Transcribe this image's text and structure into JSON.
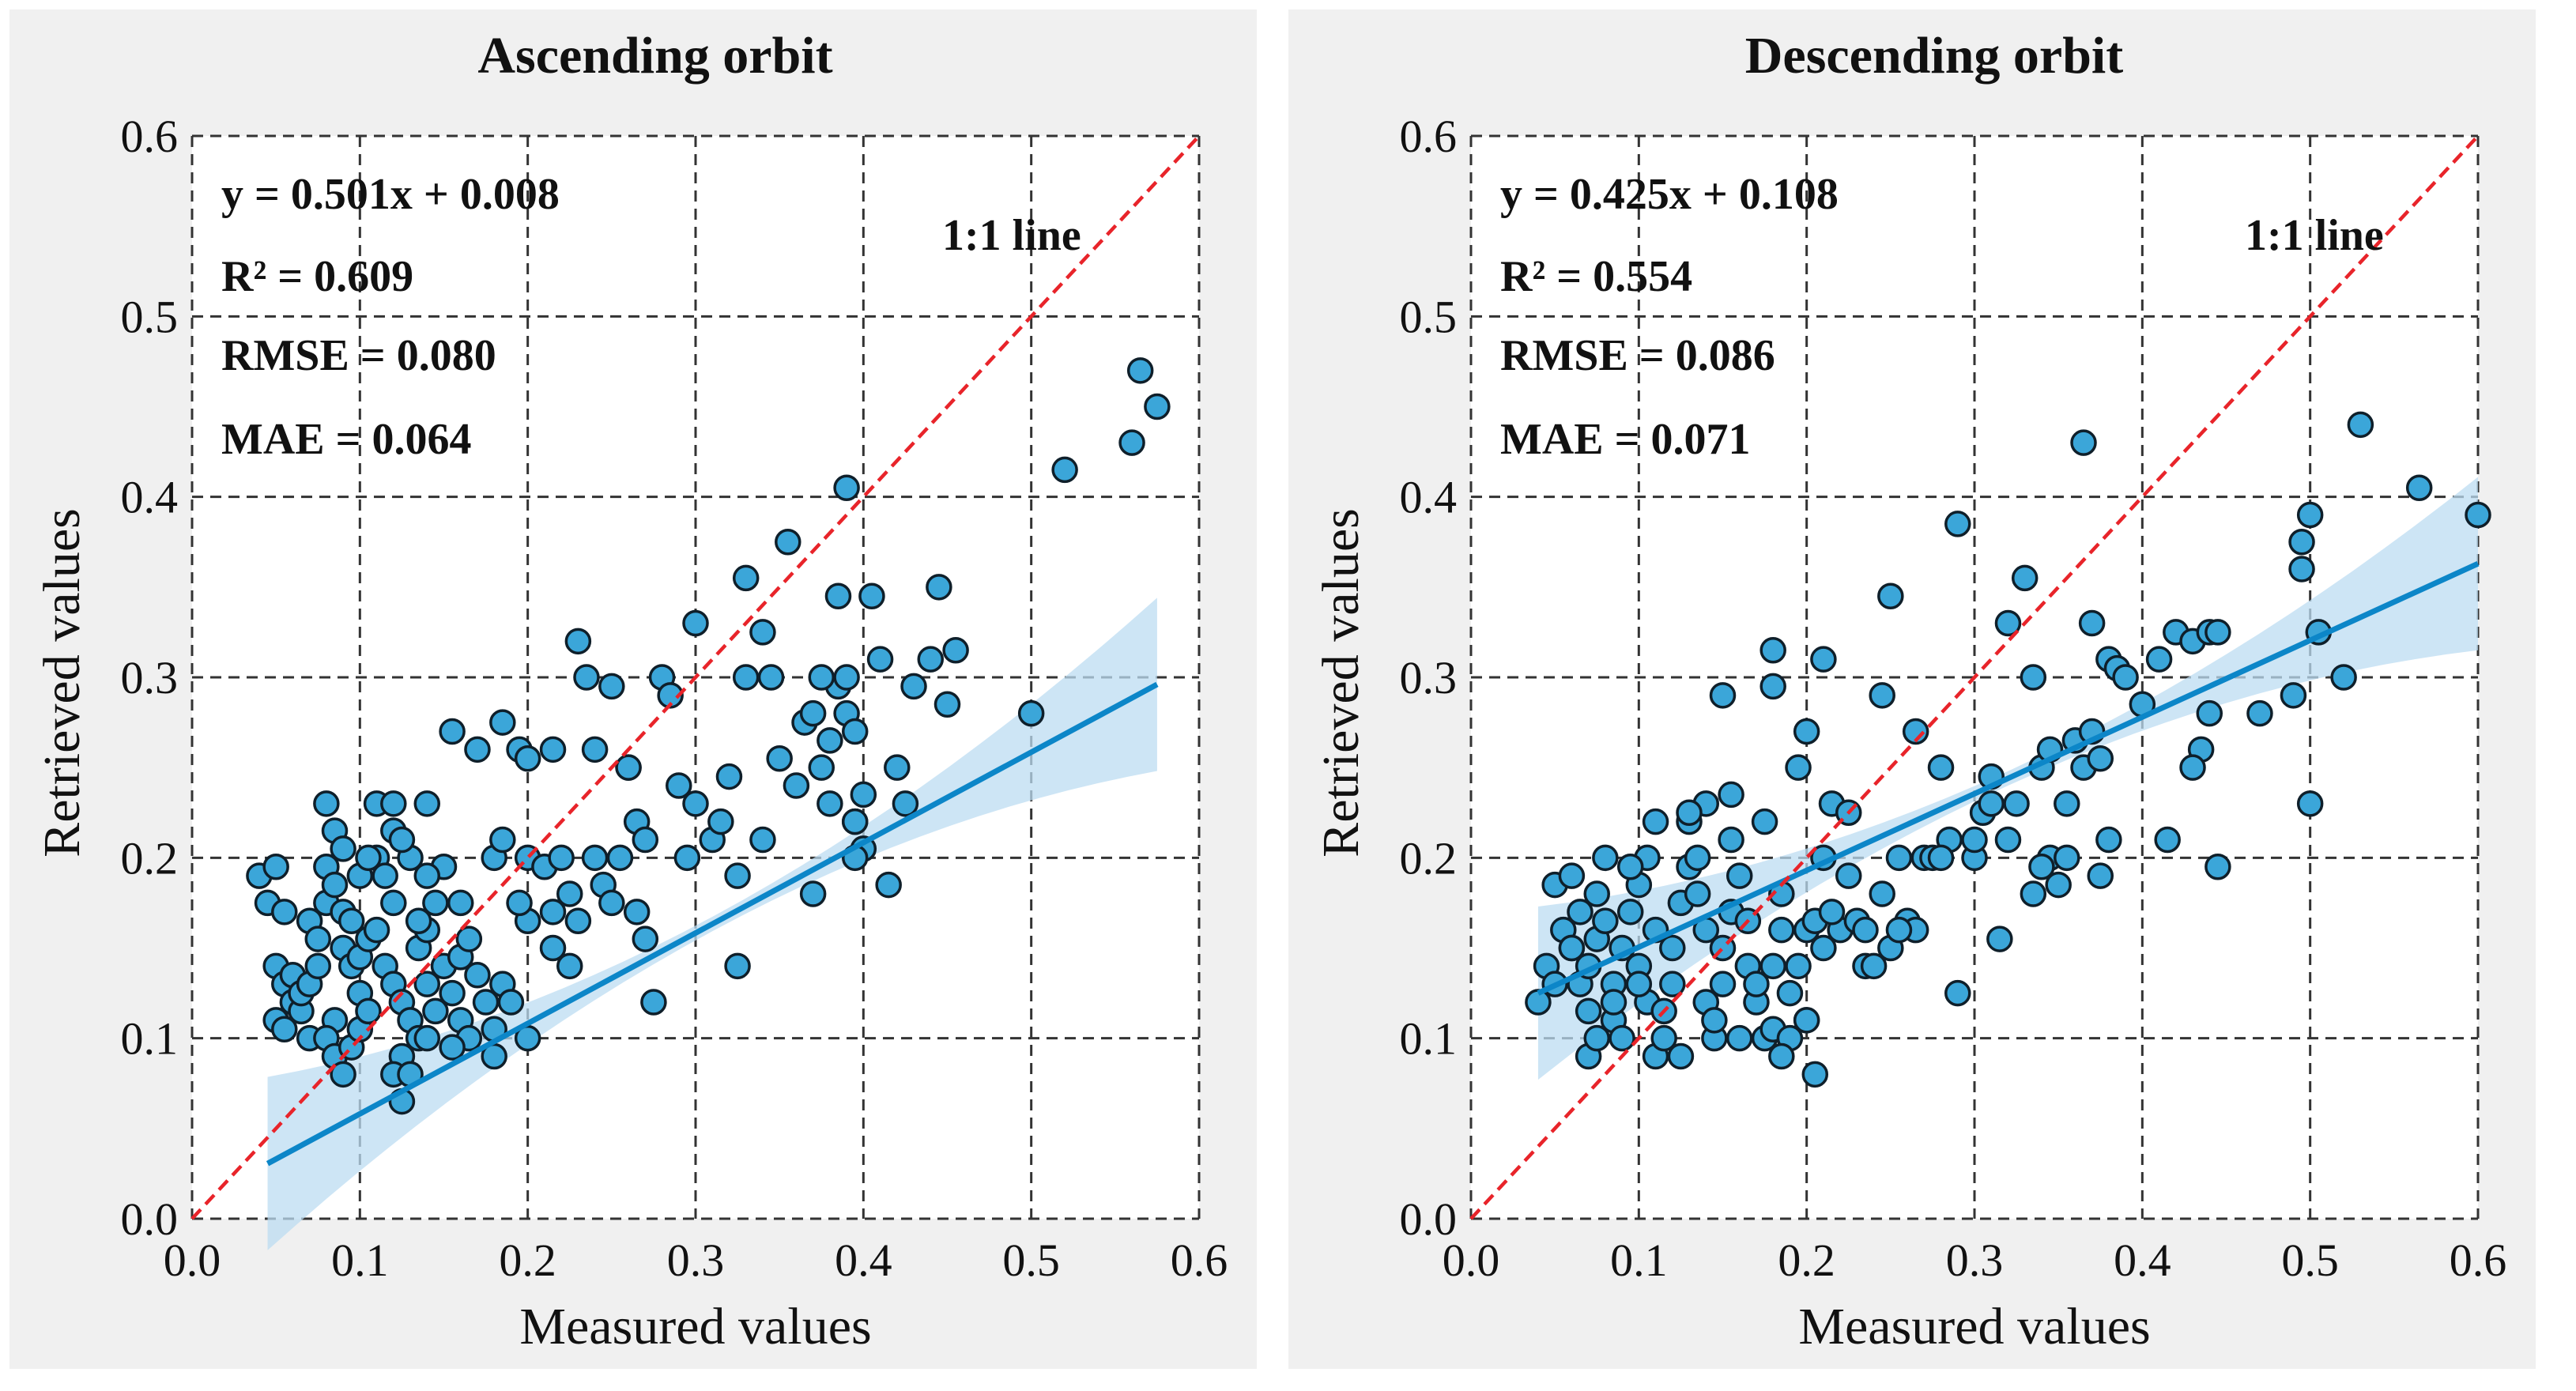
{
  "colors": {
    "background": "#f0f0f0",
    "plot_background": "#ffffff",
    "point_fill": "#3ba6d9",
    "point_edge": "#0f1f2a",
    "fit_line": "#0c86c8",
    "confidence_band": "#bcdcf2",
    "one_to_one_line": "#e8242a",
    "grid": "#333333"
  },
  "chart_data": [
    {
      "type": "scatter",
      "title": "Ascending orbit",
      "xlabel": "Measured values",
      "ylabel": "Retrieved values",
      "xlim": [
        0.0,
        0.6
      ],
      "ylim": [
        0.0,
        0.6
      ],
      "xticks": [
        "0.0",
        "0.1",
        "0.2",
        "0.3",
        "0.4",
        "0.5",
        "0.6"
      ],
      "yticks": [
        "0.0",
        "0.1",
        "0.2",
        "0.3",
        "0.4",
        "0.5",
        "0.6"
      ],
      "grid": true,
      "stats": {
        "equation": "y = 0.501x + 0.008",
        "r2": "R² = 0.609",
        "rmse": "RMSE = 0.080",
        "mae": "MAE = 0.064"
      },
      "one_to_one_label": "1:1 line",
      "fit": {
        "slope": 0.501,
        "intercept": 0.008,
        "x_range": [
          0.045,
          0.575
        ]
      },
      "points": [
        [
          0.04,
          0.19
        ],
        [
          0.045,
          0.175
        ],
        [
          0.05,
          0.195
        ],
        [
          0.055,
          0.17
        ],
        [
          0.05,
          0.14
        ],
        [
          0.055,
          0.13
        ],
        [
          0.06,
          0.12
        ],
        [
          0.065,
          0.115
        ],
        [
          0.07,
          0.1
        ],
        [
          0.05,
          0.11
        ],
        [
          0.055,
          0.105
        ],
        [
          0.06,
          0.135
        ],
        [
          0.065,
          0.125
        ],
        [
          0.07,
          0.13
        ],
        [
          0.075,
          0.14
        ],
        [
          0.07,
          0.165
        ],
        [
          0.075,
          0.155
        ],
        [
          0.08,
          0.175
        ],
        [
          0.08,
          0.195
        ],
        [
          0.08,
          0.23
        ],
        [
          0.085,
          0.215
        ],
        [
          0.09,
          0.205
        ],
        [
          0.085,
          0.185
        ],
        [
          0.09,
          0.17
        ],
        [
          0.095,
          0.165
        ],
        [
          0.09,
          0.15
        ],
        [
          0.095,
          0.14
        ],
        [
          0.1,
          0.125
        ],
        [
          0.085,
          0.11
        ],
        [
          0.08,
          0.1
        ],
        [
          0.085,
          0.09
        ],
        [
          0.09,
          0.08
        ],
        [
          0.095,
          0.095
        ],
        [
          0.1,
          0.105
        ],
        [
          0.105,
          0.115
        ],
        [
          0.1,
          0.145
        ],
        [
          0.105,
          0.155
        ],
        [
          0.11,
          0.16
        ],
        [
          0.11,
          0.2
        ],
        [
          0.115,
          0.19
        ],
        [
          0.12,
          0.175
        ],
        [
          0.1,
          0.19
        ],
        [
          0.105,
          0.2
        ],
        [
          0.11,
          0.23
        ],
        [
          0.12,
          0.23
        ],
        [
          0.13,
          0.2
        ],
        [
          0.14,
          0.23
        ],
        [
          0.12,
          0.215
        ],
        [
          0.125,
          0.21
        ],
        [
          0.115,
          0.14
        ],
        [
          0.12,
          0.13
        ],
        [
          0.125,
          0.12
        ],
        [
          0.13,
          0.11
        ],
        [
          0.135,
          0.1
        ],
        [
          0.125,
          0.09
        ],
        [
          0.12,
          0.08
        ],
        [
          0.125,
          0.065
        ],
        [
          0.13,
          0.08
        ],
        [
          0.14,
          0.1
        ],
        [
          0.145,
          0.115
        ],
        [
          0.14,
          0.13
        ],
        [
          0.135,
          0.15
        ],
        [
          0.14,
          0.16
        ],
        [
          0.135,
          0.165
        ],
        [
          0.145,
          0.175
        ],
        [
          0.15,
          0.195
        ],
        [
          0.14,
          0.19
        ],
        [
          0.15,
          0.14
        ],
        [
          0.155,
          0.125
        ],
        [
          0.16,
          0.11
        ],
        [
          0.165,
          0.1
        ],
        [
          0.155,
          0.095
        ],
        [
          0.16,
          0.145
        ],
        [
          0.165,
          0.155
        ],
        [
          0.17,
          0.135
        ],
        [
          0.175,
          0.12
        ],
        [
          0.18,
          0.105
        ],
        [
          0.18,
          0.09
        ],
        [
          0.185,
          0.13
        ],
        [
          0.19,
          0.12
        ],
        [
          0.2,
          0.1
        ],
        [
          0.2,
          0.165
        ],
        [
          0.195,
          0.175
        ],
        [
          0.18,
          0.2
        ],
        [
          0.185,
          0.21
        ],
        [
          0.2,
          0.2
        ],
        [
          0.21,
          0.195
        ],
        [
          0.215,
          0.17
        ],
        [
          0.22,
          0.2
        ],
        [
          0.225,
          0.18
        ],
        [
          0.23,
          0.165
        ],
        [
          0.225,
          0.14
        ],
        [
          0.24,
          0.2
        ],
        [
          0.245,
          0.185
        ],
        [
          0.25,
          0.175
        ],
        [
          0.255,
          0.2
        ],
        [
          0.24,
          0.26
        ],
        [
          0.235,
          0.3
        ],
        [
          0.23,
          0.32
        ],
        [
          0.25,
          0.295
        ],
        [
          0.26,
          0.25
        ],
        [
          0.265,
          0.22
        ],
        [
          0.27,
          0.21
        ],
        [
          0.265,
          0.17
        ],
        [
          0.27,
          0.155
        ],
        [
          0.275,
          0.12
        ],
        [
          0.28,
          0.3
        ],
        [
          0.285,
          0.29
        ],
        [
          0.29,
          0.24
        ],
        [
          0.295,
          0.2
        ],
        [
          0.3,
          0.23
        ],
        [
          0.3,
          0.33
        ],
        [
          0.31,
          0.21
        ],
        [
          0.315,
          0.22
        ],
        [
          0.32,
          0.245
        ],
        [
          0.325,
          0.19
        ],
        [
          0.325,
          0.14
        ],
        [
          0.33,
          0.3
        ],
        [
          0.33,
          0.355
        ],
        [
          0.34,
          0.325
        ],
        [
          0.34,
          0.21
        ],
        [
          0.35,
          0.255
        ],
        [
          0.355,
          0.375
        ],
        [
          0.36,
          0.24
        ],
        [
          0.365,
          0.275
        ],
        [
          0.37,
          0.28
        ],
        [
          0.37,
          0.18
        ],
        [
          0.375,
          0.25
        ],
        [
          0.38,
          0.23
        ],
        [
          0.38,
          0.265
        ],
        [
          0.385,
          0.345
        ],
        [
          0.385,
          0.295
        ],
        [
          0.39,
          0.3
        ],
        [
          0.39,
          0.405
        ],
        [
          0.39,
          0.28
        ],
        [
          0.395,
          0.27
        ],
        [
          0.395,
          0.22
        ],
        [
          0.4,
          0.205
        ],
        [
          0.4,
          0.235
        ],
        [
          0.405,
          0.345
        ],
        [
          0.41,
          0.31
        ],
        [
          0.415,
          0.185
        ],
        [
          0.42,
          0.25
        ],
        [
          0.425,
          0.23
        ],
        [
          0.43,
          0.295
        ],
        [
          0.44,
          0.31
        ],
        [
          0.445,
          0.35
        ],
        [
          0.45,
          0.285
        ],
        [
          0.455,
          0.315
        ],
        [
          0.5,
          0.28
        ],
        [
          0.52,
          0.415
        ],
        [
          0.56,
          0.43
        ],
        [
          0.565,
          0.47
        ],
        [
          0.575,
          0.45
        ],
        [
          0.155,
          0.27
        ],
        [
          0.17,
          0.26
        ],
        [
          0.185,
          0.275
        ],
        [
          0.195,
          0.26
        ],
        [
          0.2,
          0.255
        ],
        [
          0.26,
          0.25
        ],
        [
          0.215,
          0.26
        ],
        [
          0.395,
          0.22
        ],
        [
          0.375,
          0.3
        ],
        [
          0.345,
          0.3
        ],
        [
          0.395,
          0.2
        ],
        [
          0.215,
          0.15
        ],
        [
          0.16,
          0.175
        ]
      ]
    },
    {
      "type": "scatter",
      "title": "Descending orbit",
      "xlabel": "Measured values",
      "ylabel": "Retrieved values",
      "xlim": [
        0.0,
        0.6
      ],
      "ylim": [
        0.0,
        0.6
      ],
      "xticks": [
        "0.0",
        "0.1",
        "0.2",
        "0.3",
        "0.4",
        "0.5",
        "0.6"
      ],
      "yticks": [
        "0.0",
        "0.1",
        "0.2",
        "0.3",
        "0.4",
        "0.5",
        "0.6"
      ],
      "grid": true,
      "stats": {
        "equation": "y = 0.425x + 0.108",
        "r2": "R² = 0.554",
        "rmse": "RMSE = 0.086",
        "mae": "MAE = 0.071"
      },
      "one_to_one_label": "1:1 line",
      "fit": {
        "slope": 0.425,
        "intercept": 0.108,
        "x_range": [
          0.04,
          0.6
        ]
      },
      "points": [
        [
          0.04,
          0.12
        ],
        [
          0.045,
          0.14
        ],
        [
          0.05,
          0.13
        ],
        [
          0.05,
          0.185
        ],
        [
          0.055,
          0.16
        ],
        [
          0.06,
          0.15
        ],
        [
          0.06,
          0.19
        ],
        [
          0.065,
          0.17
        ],
        [
          0.065,
          0.13
        ],
        [
          0.07,
          0.115
        ],
        [
          0.07,
          0.14
        ],
        [
          0.075,
          0.155
        ],
        [
          0.075,
          0.18
        ],
        [
          0.08,
          0.2
        ],
        [
          0.08,
          0.165
        ],
        [
          0.085,
          0.13
        ],
        [
          0.085,
          0.11
        ],
        [
          0.09,
          0.1
        ],
        [
          0.09,
          0.15
        ],
        [
          0.095,
          0.17
        ],
        [
          0.1,
          0.185
        ],
        [
          0.1,
          0.14
        ],
        [
          0.105,
          0.12
        ],
        [
          0.105,
          0.2
        ],
        [
          0.11,
          0.16
        ],
        [
          0.11,
          0.09
        ],
        [
          0.115,
          0.1
        ],
        [
          0.12,
          0.13
        ],
        [
          0.12,
          0.15
        ],
        [
          0.125,
          0.175
        ],
        [
          0.13,
          0.195
        ],
        [
          0.13,
          0.22
        ],
        [
          0.135,
          0.2
        ],
        [
          0.135,
          0.18
        ],
        [
          0.14,
          0.16
        ],
        [
          0.14,
          0.12
        ],
        [
          0.145,
          0.1
        ],
        [
          0.15,
          0.13
        ],
        [
          0.15,
          0.15
        ],
        [
          0.155,
          0.17
        ],
        [
          0.155,
          0.21
        ],
        [
          0.16,
          0.19
        ],
        [
          0.165,
          0.165
        ],
        [
          0.165,
          0.14
        ],
        [
          0.17,
          0.12
        ],
        [
          0.175,
          0.1
        ],
        [
          0.18,
          0.105
        ],
        [
          0.18,
          0.14
        ],
        [
          0.185,
          0.16
        ],
        [
          0.185,
          0.18
        ],
        [
          0.19,
          0.125
        ],
        [
          0.19,
          0.1
        ],
        [
          0.195,
          0.14
        ],
        [
          0.2,
          0.16
        ],
        [
          0.2,
          0.11
        ],
        [
          0.205,
          0.08
        ],
        [
          0.205,
          0.165
        ],
        [
          0.21,
          0.15
        ],
        [
          0.21,
          0.2
        ],
        [
          0.215,
          0.23
        ],
        [
          0.22,
          0.16
        ],
        [
          0.225,
          0.19
        ],
        [
          0.23,
          0.165
        ],
        [
          0.235,
          0.14
        ],
        [
          0.24,
          0.14
        ],
        [
          0.245,
          0.18
        ],
        [
          0.25,
          0.15
        ],
        [
          0.255,
          0.2
        ],
        [
          0.26,
          0.165
        ],
        [
          0.265,
          0.16
        ],
        [
          0.27,
          0.2
        ],
        [
          0.275,
          0.2
        ],
        [
          0.28,
          0.25
        ],
        [
          0.285,
          0.21
        ],
        [
          0.29,
          0.385
        ],
        [
          0.29,
          0.125
        ],
        [
          0.3,
          0.2
        ],
        [
          0.305,
          0.225
        ],
        [
          0.31,
          0.23
        ],
        [
          0.315,
          0.155
        ],
        [
          0.32,
          0.33
        ],
        [
          0.32,
          0.21
        ],
        [
          0.33,
          0.355
        ],
        [
          0.335,
          0.3
        ],
        [
          0.335,
          0.18
        ],
        [
          0.34,
          0.25
        ],
        [
          0.345,
          0.2
        ],
        [
          0.35,
          0.185
        ],
        [
          0.355,
          0.2
        ],
        [
          0.36,
          0.265
        ],
        [
          0.365,
          0.43
        ],
        [
          0.365,
          0.25
        ],
        [
          0.37,
          0.33
        ],
        [
          0.375,
          0.255
        ],
        [
          0.38,
          0.21
        ],
        [
          0.38,
          0.31
        ],
        [
          0.385,
          0.305
        ],
        [
          0.4,
          0.285
        ],
        [
          0.41,
          0.31
        ],
        [
          0.415,
          0.21
        ],
        [
          0.42,
          0.325
        ],
        [
          0.43,
          0.32
        ],
        [
          0.435,
          0.26
        ],
        [
          0.44,
          0.325
        ],
        [
          0.445,
          0.325
        ],
        [
          0.445,
          0.195
        ],
        [
          0.47,
          0.28
        ],
        [
          0.49,
          0.29
        ],
        [
          0.495,
          0.375
        ],
        [
          0.495,
          0.36
        ],
        [
          0.5,
          0.23
        ],
        [
          0.5,
          0.39
        ],
        [
          0.505,
          0.325
        ],
        [
          0.52,
          0.3
        ],
        [
          0.53,
          0.44
        ],
        [
          0.565,
          0.405
        ],
        [
          0.6,
          0.39
        ],
        [
          0.175,
          0.22
        ],
        [
          0.18,
          0.295
        ],
        [
          0.18,
          0.315
        ],
        [
          0.2,
          0.27
        ],
        [
          0.195,
          0.25
        ],
        [
          0.21,
          0.31
        ],
        [
          0.225,
          0.225
        ],
        [
          0.25,
          0.345
        ],
        [
          0.265,
          0.27
        ],
        [
          0.245,
          0.29
        ],
        [
          0.15,
          0.29
        ],
        [
          0.155,
          0.235
        ],
        [
          0.14,
          0.23
        ],
        [
          0.13,
          0.225
        ],
        [
          0.11,
          0.22
        ],
        [
          0.095,
          0.195
        ],
        [
          0.06,
          0.15
        ],
        [
          0.07,
          0.09
        ],
        [
          0.075,
          0.1
        ],
        [
          0.085,
          0.12
        ],
        [
          0.1,
          0.13
        ],
        [
          0.115,
          0.115
        ],
        [
          0.125,
          0.09
        ],
        [
          0.145,
          0.11
        ],
        [
          0.16,
          0.1
        ],
        [
          0.17,
          0.13
        ],
        [
          0.185,
          0.09
        ],
        [
          0.2,
          0.11
        ],
        [
          0.215,
          0.17
        ],
        [
          0.235,
          0.16
        ],
        [
          0.255,
          0.16
        ],
        [
          0.28,
          0.2
        ],
        [
          0.3,
          0.21
        ],
        [
          0.31,
          0.245
        ],
        [
          0.325,
          0.23
        ],
        [
          0.34,
          0.195
        ],
        [
          0.345,
          0.26
        ],
        [
          0.355,
          0.23
        ],
        [
          0.37,
          0.27
        ],
        [
          0.375,
          0.19
        ],
        [
          0.39,
          0.3
        ],
        [
          0.43,
          0.25
        ],
        [
          0.44,
          0.28
        ]
      ]
    }
  ]
}
